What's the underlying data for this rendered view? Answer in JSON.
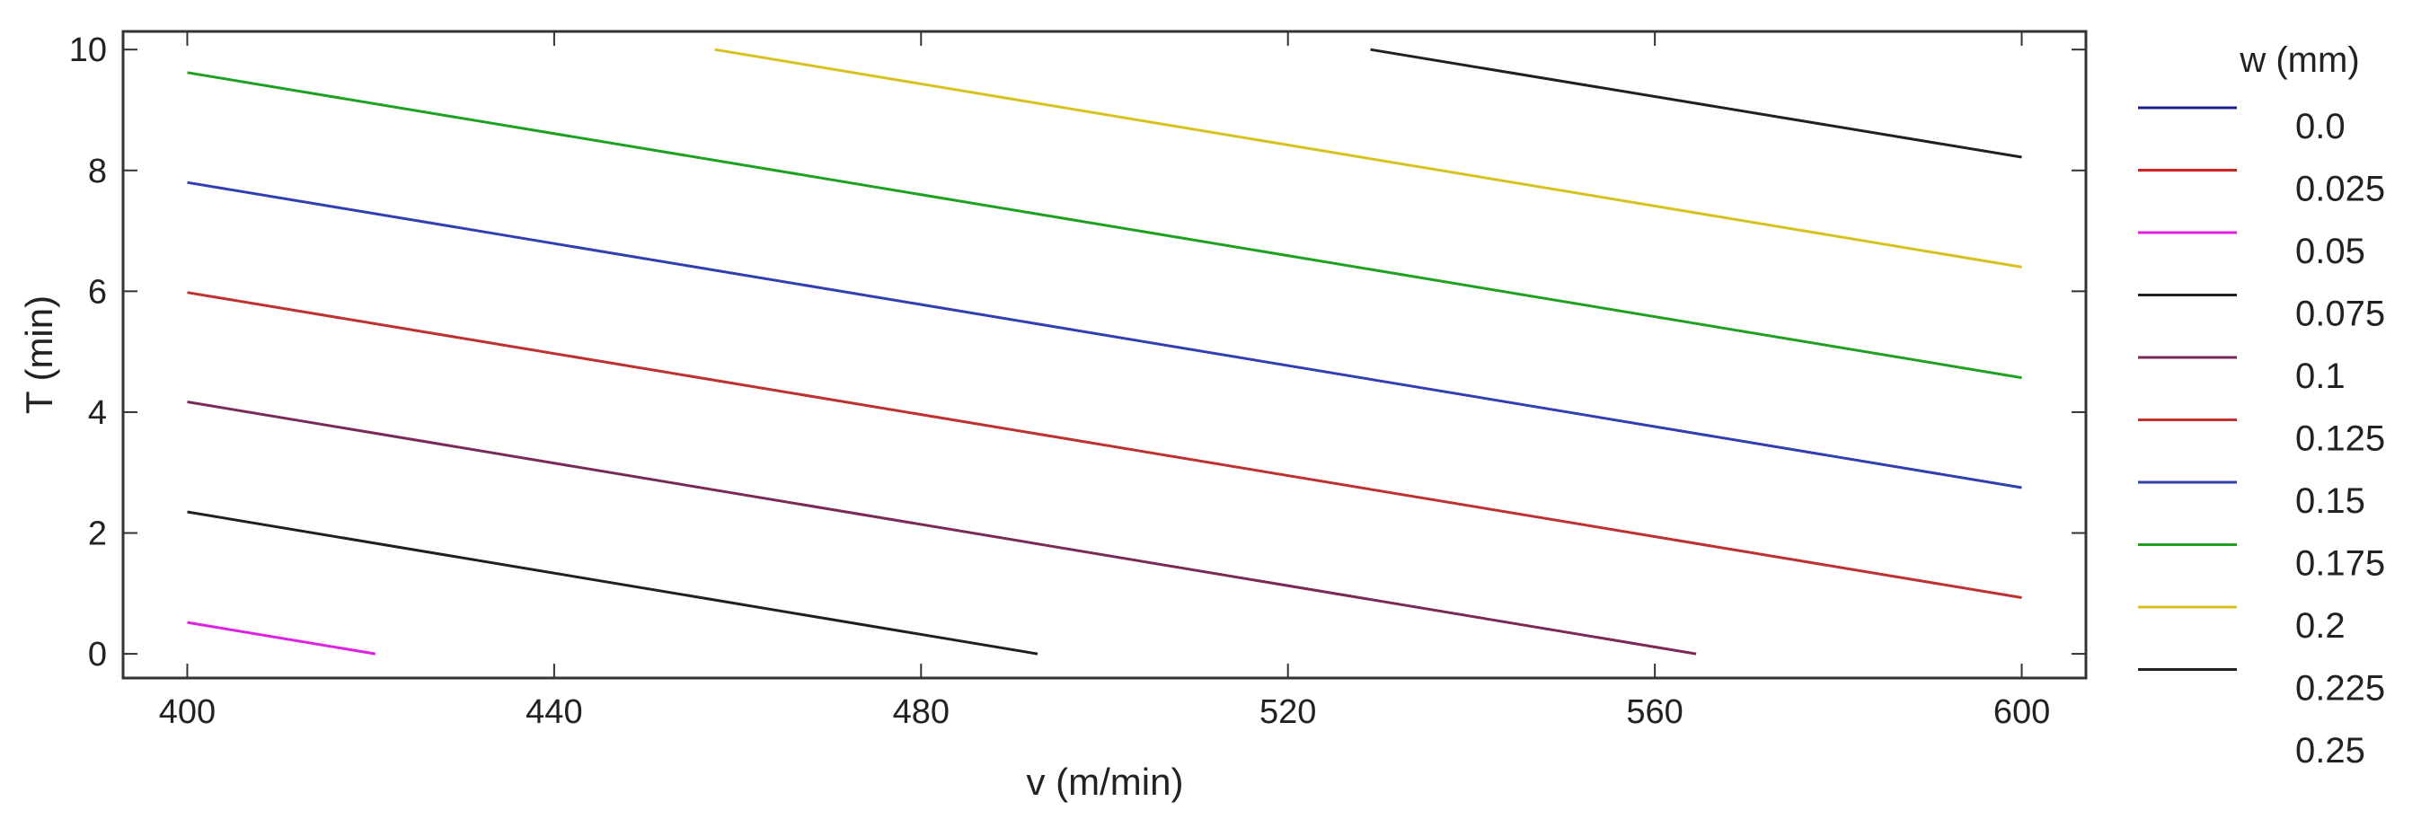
{
  "chart_data": {
    "type": "line",
    "xlabel": "v (m/min)",
    "ylabel": "T (min)",
    "xlim": [
      393,
      607
    ],
    "ylim": [
      -0.4,
      10.3
    ],
    "xticks": [
      400,
      440,
      480,
      520,
      560,
      600
    ],
    "yticks": [
      0,
      2,
      4,
      6,
      8,
      10
    ],
    "grid": false,
    "legend": {
      "title": "w (mm)",
      "position": "right",
      "entries": [
        {
          "label": "0.0",
          "color": "#1f1f8f"
        },
        {
          "label": "0.025",
          "color": "#d02020"
        },
        {
          "label": "0.05",
          "color": "#e020e0"
        },
        {
          "label": "0.075",
          "color": "#202020"
        },
        {
          "label": "0.1",
          "color": "#7a2a5a"
        },
        {
          "label": "0.125",
          "color": "#c03030"
        },
        {
          "label": "0.15",
          "color": "#3040b0"
        },
        {
          "label": "0.175",
          "color": "#20a020"
        },
        {
          "label": "0.2",
          "color": "#d8c020"
        },
        {
          "label": "0.225",
          "color": "#202020"
        },
        {
          "label": "0.25",
          "color": "#7a2a5a"
        }
      ]
    },
    "series": [
      {
        "color": "#e020e0",
        "points": [
          [
            400,
            0.52
          ],
          [
            420.5,
            0.0
          ]
        ]
      },
      {
        "color": "#202020",
        "points": [
          [
            400,
            2.35
          ],
          [
            492.7,
            0.0
          ]
        ]
      },
      {
        "color": "#7a2a5a",
        "points": [
          [
            400,
            4.17
          ],
          [
            564.5,
            0.0
          ]
        ]
      },
      {
        "color": "#c03030",
        "points": [
          [
            400,
            5.98
          ],
          [
            600,
            0.93
          ]
        ]
      },
      {
        "color": "#3040b0",
        "points": [
          [
            400,
            7.8
          ],
          [
            600,
            2.75
          ]
        ]
      },
      {
        "color": "#20a020",
        "points": [
          [
            400,
            9.62
          ],
          [
            600,
            4.57
          ]
        ]
      },
      {
        "color": "#d8c020",
        "points": [
          [
            457.5,
            10.0
          ],
          [
            600,
            6.4
          ]
        ]
      },
      {
        "color": "#202020",
        "points": [
          [
            529,
            10.0
          ],
          [
            600,
            8.22
          ]
        ]
      }
    ]
  }
}
